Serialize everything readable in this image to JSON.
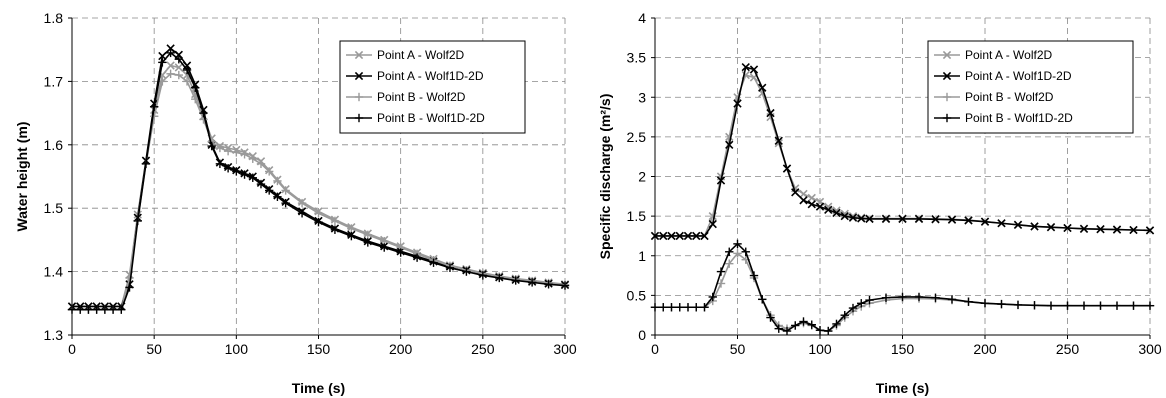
{
  "chart_data": [
    {
      "type": "line",
      "xlabel": "Time (s)",
      "ylabel": "Water height (m)",
      "xlim": [
        0,
        300
      ],
      "ylim": [
        1.3,
        1.8
      ],
      "xticks": [
        0,
        50,
        100,
        150,
        200,
        250,
        300
      ],
      "yticks": [
        1.3,
        1.4,
        1.5,
        1.6,
        1.7,
        1.8
      ],
      "ytick_labels": [
        "1.3",
        "1.4",
        "1.5",
        "1.6",
        "1.7",
        "1.8"
      ],
      "grid": true,
      "legend_position": "top-right",
      "series": [
        {
          "name": "Point A - Wolf2D",
          "color": "#9a9a9a",
          "marker": "x",
          "x": [
            0,
            5,
            10,
            15,
            20,
            25,
            30,
            35,
            40,
            45,
            50,
            55,
            60,
            65,
            70,
            75,
            80,
            85,
            90,
            95,
            100,
            105,
            110,
            115,
            120,
            125,
            130,
            140,
            150,
            160,
            170,
            180,
            190,
            200,
            210,
            220,
            230,
            240,
            250,
            260,
            270,
            280,
            290,
            300
          ],
          "y": [
            1.345,
            1.345,
            1.345,
            1.345,
            1.345,
            1.345,
            1.345,
            1.395,
            1.49,
            1.575,
            1.655,
            1.71,
            1.725,
            1.722,
            1.71,
            1.68,
            1.645,
            1.61,
            1.598,
            1.595,
            1.592,
            1.588,
            1.582,
            1.574,
            1.56,
            1.545,
            1.53,
            1.51,
            1.495,
            1.482,
            1.47,
            1.46,
            1.45,
            1.44,
            1.43,
            1.42,
            1.41,
            1.404,
            1.398,
            1.393,
            1.389,
            1.386,
            1.383,
            1.38
          ]
        },
        {
          "name": "Point A - Wolf1D-2D",
          "color": "#000000",
          "marker": "x",
          "x": [
            0,
            5,
            10,
            15,
            20,
            25,
            30,
            35,
            40,
            45,
            50,
            55,
            60,
            65,
            70,
            75,
            80,
            85,
            90,
            95,
            100,
            105,
            110,
            115,
            120,
            125,
            130,
            140,
            150,
            160,
            170,
            180,
            190,
            200,
            210,
            220,
            230,
            240,
            250,
            260,
            270,
            280,
            290,
            300
          ],
          "y": [
            1.345,
            1.345,
            1.345,
            1.345,
            1.345,
            1.345,
            1.345,
            1.38,
            1.485,
            1.575,
            1.665,
            1.74,
            1.752,
            1.742,
            1.725,
            1.695,
            1.655,
            1.6,
            1.572,
            1.565,
            1.56,
            1.555,
            1.55,
            1.54,
            1.53,
            1.52,
            1.51,
            1.495,
            1.48,
            1.468,
            1.458,
            1.448,
            1.44,
            1.432,
            1.424,
            1.416,
            1.408,
            1.402,
            1.396,
            1.391,
            1.387,
            1.384,
            1.381,
            1.379
          ]
        },
        {
          "name": "Point B - Wolf2D",
          "color": "#9a9a9a",
          "marker": "+",
          "x": [
            0,
            5,
            10,
            15,
            20,
            25,
            30,
            35,
            40,
            45,
            50,
            55,
            60,
            65,
            70,
            75,
            80,
            85,
            90,
            95,
            100,
            105,
            110,
            115,
            120,
            125,
            130,
            140,
            150,
            160,
            170,
            180,
            190,
            200,
            210,
            220,
            230,
            240,
            250,
            260,
            270,
            280,
            290,
            300
          ],
          "y": [
            1.34,
            1.34,
            1.34,
            1.34,
            1.34,
            1.34,
            1.34,
            1.39,
            1.48,
            1.57,
            1.645,
            1.7,
            1.712,
            1.71,
            1.7,
            1.672,
            1.64,
            1.605,
            1.595,
            1.59,
            1.588,
            1.585,
            1.578,
            1.57,
            1.558,
            1.543,
            1.528,
            1.508,
            1.492,
            1.48,
            1.468,
            1.458,
            1.448,
            1.438,
            1.428,
            1.418,
            1.409,
            1.402,
            1.397,
            1.392,
            1.388,
            1.385,
            1.382,
            1.379
          ]
        },
        {
          "name": "Point B - Wolf1D-2D",
          "color": "#000000",
          "marker": "+",
          "x": [
            0,
            5,
            10,
            15,
            20,
            25,
            30,
            35,
            40,
            45,
            50,
            55,
            60,
            65,
            70,
            75,
            80,
            85,
            90,
            95,
            100,
            105,
            110,
            115,
            120,
            125,
            130,
            140,
            150,
            160,
            170,
            180,
            190,
            200,
            210,
            220,
            230,
            240,
            250,
            260,
            270,
            280,
            290,
            300
          ],
          "y": [
            1.34,
            1.34,
            1.34,
            1.34,
            1.34,
            1.34,
            1.34,
            1.375,
            1.48,
            1.57,
            1.66,
            1.73,
            1.745,
            1.735,
            1.718,
            1.69,
            1.65,
            1.598,
            1.57,
            1.563,
            1.558,
            1.553,
            1.548,
            1.538,
            1.528,
            1.518,
            1.508,
            1.492,
            1.478,
            1.466,
            1.456,
            1.446,
            1.438,
            1.43,
            1.422,
            1.414,
            1.406,
            1.4,
            1.394,
            1.39,
            1.386,
            1.383,
            1.38,
            1.378
          ]
        }
      ]
    },
    {
      "type": "line",
      "xlabel": "Time (s)",
      "ylabel": "Specific discharge (m²/s)",
      "xlim": [
        0,
        300
      ],
      "ylim": [
        0,
        4
      ],
      "xticks": [
        0,
        50,
        100,
        150,
        200,
        250,
        300
      ],
      "yticks": [
        0,
        0.5,
        1,
        1.5,
        2,
        2.5,
        3,
        3.5,
        4
      ],
      "ytick_labels": [
        "0",
        "0.5",
        "1",
        "1.5",
        "2",
        "2.5",
        "3",
        "3.5",
        "4"
      ],
      "grid": true,
      "legend_position": "top-right",
      "series": [
        {
          "name": "Point A - Wolf2D",
          "color": "#9a9a9a",
          "marker": "x",
          "x": [
            0,
            5,
            10,
            15,
            20,
            25,
            30,
            35,
            40,
            45,
            50,
            55,
            60,
            65,
            70,
            75,
            80,
            85,
            90,
            95,
            100,
            105,
            110,
            115,
            120,
            125,
            130,
            140,
            150,
            160,
            170,
            180,
            190,
            200,
            210,
            220,
            230,
            240,
            250,
            260,
            270,
            280,
            290,
            300
          ],
          "y": [
            1.25,
            1.25,
            1.25,
            1.25,
            1.25,
            1.25,
            1.25,
            1.5,
            2.0,
            2.5,
            3.0,
            3.28,
            3.25,
            3.05,
            2.75,
            2.42,
            2.1,
            1.85,
            1.78,
            1.73,
            1.68,
            1.62,
            1.57,
            1.53,
            1.5,
            1.48,
            1.47,
            1.47,
            1.47,
            1.47,
            1.465,
            1.46,
            1.45,
            1.43,
            1.41,
            1.39,
            1.37,
            1.36,
            1.35,
            1.34,
            1.335,
            1.33,
            1.325,
            1.32
          ]
        },
        {
          "name": "Point A - Wolf1D-2D",
          "color": "#000000",
          "marker": "x",
          "x": [
            0,
            5,
            10,
            15,
            20,
            25,
            30,
            35,
            40,
            45,
            50,
            55,
            60,
            65,
            70,
            75,
            80,
            85,
            90,
            95,
            100,
            105,
            110,
            115,
            120,
            125,
            130,
            140,
            150,
            160,
            170,
            180,
            190,
            200,
            210,
            220,
            230,
            240,
            250,
            260,
            270,
            280,
            290,
            300
          ],
          "y": [
            1.25,
            1.25,
            1.25,
            1.25,
            1.25,
            1.25,
            1.25,
            1.4,
            1.95,
            2.4,
            2.92,
            3.38,
            3.35,
            3.12,
            2.8,
            2.45,
            2.1,
            1.8,
            1.7,
            1.65,
            1.62,
            1.58,
            1.54,
            1.5,
            1.48,
            1.47,
            1.465,
            1.465,
            1.465,
            1.465,
            1.46,
            1.455,
            1.445,
            1.43,
            1.41,
            1.39,
            1.37,
            1.36,
            1.35,
            1.34,
            1.335,
            1.33,
            1.325,
            1.32
          ]
        },
        {
          "name": "Point B - Wolf2D",
          "color": "#9a9a9a",
          "marker": "+",
          "x": [
            0,
            5,
            10,
            15,
            20,
            25,
            30,
            35,
            40,
            45,
            50,
            55,
            60,
            65,
            70,
            75,
            80,
            85,
            90,
            95,
            100,
            105,
            110,
            115,
            120,
            125,
            130,
            140,
            150,
            160,
            170,
            180,
            190,
            200,
            210,
            220,
            230,
            240,
            250,
            260,
            270,
            280,
            290,
            300
          ],
          "y": [
            0.35,
            0.35,
            0.35,
            0.35,
            0.35,
            0.35,
            0.35,
            0.43,
            0.65,
            0.9,
            1.03,
            0.95,
            0.72,
            0.45,
            0.25,
            0.12,
            0.08,
            0.12,
            0.15,
            0.12,
            0.06,
            0.05,
            0.12,
            0.22,
            0.3,
            0.36,
            0.4,
            0.44,
            0.46,
            0.46,
            0.455,
            0.44,
            0.42,
            0.4,
            0.39,
            0.38,
            0.375,
            0.37,
            0.37,
            0.37,
            0.37,
            0.37,
            0.37,
            0.37
          ]
        },
        {
          "name": "Point B - Wolf1D-2D",
          "color": "#000000",
          "marker": "+",
          "x": [
            0,
            5,
            10,
            15,
            20,
            25,
            30,
            35,
            40,
            45,
            50,
            55,
            60,
            65,
            70,
            75,
            80,
            85,
            90,
            95,
            100,
            105,
            110,
            115,
            120,
            125,
            130,
            140,
            150,
            160,
            170,
            180,
            190,
            200,
            210,
            220,
            230,
            240,
            250,
            260,
            270,
            280,
            290,
            300
          ],
          "y": [
            0.35,
            0.35,
            0.35,
            0.35,
            0.35,
            0.35,
            0.35,
            0.48,
            0.8,
            1.05,
            1.15,
            1.05,
            0.75,
            0.45,
            0.22,
            0.08,
            0.05,
            0.12,
            0.17,
            0.13,
            0.06,
            0.05,
            0.14,
            0.25,
            0.34,
            0.4,
            0.44,
            0.47,
            0.48,
            0.48,
            0.47,
            0.45,
            0.42,
            0.4,
            0.39,
            0.38,
            0.375,
            0.37,
            0.37,
            0.37,
            0.37,
            0.37,
            0.37,
            0.37
          ]
        }
      ]
    }
  ]
}
